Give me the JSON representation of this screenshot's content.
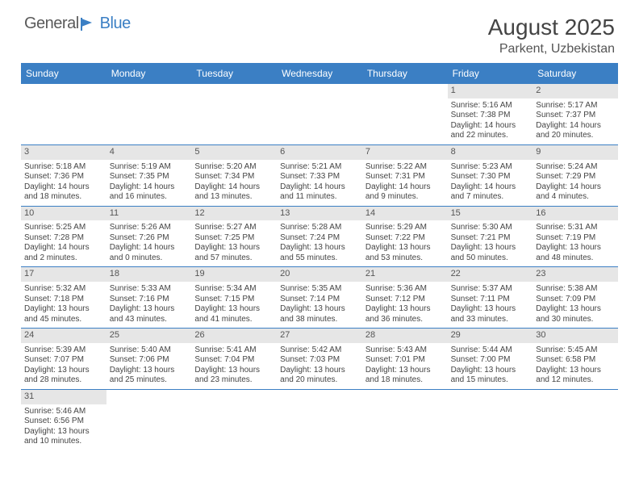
{
  "brand": {
    "text1": "General",
    "text2": "Blue"
  },
  "title": "August 2025",
  "location": "Parkent, Uzbekistan",
  "colors": {
    "header_bg": "#3b7fc4",
    "daynum_bg": "#e6e6e6",
    "text": "#444444"
  },
  "day_labels": [
    "Sunday",
    "Monday",
    "Tuesday",
    "Wednesday",
    "Thursday",
    "Friday",
    "Saturday"
  ],
  "weeks": [
    [
      null,
      null,
      null,
      null,
      null,
      {
        "n": "1",
        "sr": "Sunrise: 5:16 AM",
        "ss": "Sunset: 7:38 PM",
        "d1": "Daylight: 14 hours",
        "d2": "and 22 minutes."
      },
      {
        "n": "2",
        "sr": "Sunrise: 5:17 AM",
        "ss": "Sunset: 7:37 PM",
        "d1": "Daylight: 14 hours",
        "d2": "and 20 minutes."
      }
    ],
    [
      {
        "n": "3",
        "sr": "Sunrise: 5:18 AM",
        "ss": "Sunset: 7:36 PM",
        "d1": "Daylight: 14 hours",
        "d2": "and 18 minutes."
      },
      {
        "n": "4",
        "sr": "Sunrise: 5:19 AM",
        "ss": "Sunset: 7:35 PM",
        "d1": "Daylight: 14 hours",
        "d2": "and 16 minutes."
      },
      {
        "n": "5",
        "sr": "Sunrise: 5:20 AM",
        "ss": "Sunset: 7:34 PM",
        "d1": "Daylight: 14 hours",
        "d2": "and 13 minutes."
      },
      {
        "n": "6",
        "sr": "Sunrise: 5:21 AM",
        "ss": "Sunset: 7:33 PM",
        "d1": "Daylight: 14 hours",
        "d2": "and 11 minutes."
      },
      {
        "n": "7",
        "sr": "Sunrise: 5:22 AM",
        "ss": "Sunset: 7:31 PM",
        "d1": "Daylight: 14 hours",
        "d2": "and 9 minutes."
      },
      {
        "n": "8",
        "sr": "Sunrise: 5:23 AM",
        "ss": "Sunset: 7:30 PM",
        "d1": "Daylight: 14 hours",
        "d2": "and 7 minutes."
      },
      {
        "n": "9",
        "sr": "Sunrise: 5:24 AM",
        "ss": "Sunset: 7:29 PM",
        "d1": "Daylight: 14 hours",
        "d2": "and 4 minutes."
      }
    ],
    [
      {
        "n": "10",
        "sr": "Sunrise: 5:25 AM",
        "ss": "Sunset: 7:28 PM",
        "d1": "Daylight: 14 hours",
        "d2": "and 2 minutes."
      },
      {
        "n": "11",
        "sr": "Sunrise: 5:26 AM",
        "ss": "Sunset: 7:26 PM",
        "d1": "Daylight: 14 hours",
        "d2": "and 0 minutes."
      },
      {
        "n": "12",
        "sr": "Sunrise: 5:27 AM",
        "ss": "Sunset: 7:25 PM",
        "d1": "Daylight: 13 hours",
        "d2": "and 57 minutes."
      },
      {
        "n": "13",
        "sr": "Sunrise: 5:28 AM",
        "ss": "Sunset: 7:24 PM",
        "d1": "Daylight: 13 hours",
        "d2": "and 55 minutes."
      },
      {
        "n": "14",
        "sr": "Sunrise: 5:29 AM",
        "ss": "Sunset: 7:22 PM",
        "d1": "Daylight: 13 hours",
        "d2": "and 53 minutes."
      },
      {
        "n": "15",
        "sr": "Sunrise: 5:30 AM",
        "ss": "Sunset: 7:21 PM",
        "d1": "Daylight: 13 hours",
        "d2": "and 50 minutes."
      },
      {
        "n": "16",
        "sr": "Sunrise: 5:31 AM",
        "ss": "Sunset: 7:19 PM",
        "d1": "Daylight: 13 hours",
        "d2": "and 48 minutes."
      }
    ],
    [
      {
        "n": "17",
        "sr": "Sunrise: 5:32 AM",
        "ss": "Sunset: 7:18 PM",
        "d1": "Daylight: 13 hours",
        "d2": "and 45 minutes."
      },
      {
        "n": "18",
        "sr": "Sunrise: 5:33 AM",
        "ss": "Sunset: 7:16 PM",
        "d1": "Daylight: 13 hours",
        "d2": "and 43 minutes."
      },
      {
        "n": "19",
        "sr": "Sunrise: 5:34 AM",
        "ss": "Sunset: 7:15 PM",
        "d1": "Daylight: 13 hours",
        "d2": "and 41 minutes."
      },
      {
        "n": "20",
        "sr": "Sunrise: 5:35 AM",
        "ss": "Sunset: 7:14 PM",
        "d1": "Daylight: 13 hours",
        "d2": "and 38 minutes."
      },
      {
        "n": "21",
        "sr": "Sunrise: 5:36 AM",
        "ss": "Sunset: 7:12 PM",
        "d1": "Daylight: 13 hours",
        "d2": "and 36 minutes."
      },
      {
        "n": "22",
        "sr": "Sunrise: 5:37 AM",
        "ss": "Sunset: 7:11 PM",
        "d1": "Daylight: 13 hours",
        "d2": "and 33 minutes."
      },
      {
        "n": "23",
        "sr": "Sunrise: 5:38 AM",
        "ss": "Sunset: 7:09 PM",
        "d1": "Daylight: 13 hours",
        "d2": "and 30 minutes."
      }
    ],
    [
      {
        "n": "24",
        "sr": "Sunrise: 5:39 AM",
        "ss": "Sunset: 7:07 PM",
        "d1": "Daylight: 13 hours",
        "d2": "and 28 minutes."
      },
      {
        "n": "25",
        "sr": "Sunrise: 5:40 AM",
        "ss": "Sunset: 7:06 PM",
        "d1": "Daylight: 13 hours",
        "d2": "and 25 minutes."
      },
      {
        "n": "26",
        "sr": "Sunrise: 5:41 AM",
        "ss": "Sunset: 7:04 PM",
        "d1": "Daylight: 13 hours",
        "d2": "and 23 minutes."
      },
      {
        "n": "27",
        "sr": "Sunrise: 5:42 AM",
        "ss": "Sunset: 7:03 PM",
        "d1": "Daylight: 13 hours",
        "d2": "and 20 minutes."
      },
      {
        "n": "28",
        "sr": "Sunrise: 5:43 AM",
        "ss": "Sunset: 7:01 PM",
        "d1": "Daylight: 13 hours",
        "d2": "and 18 minutes."
      },
      {
        "n": "29",
        "sr": "Sunrise: 5:44 AM",
        "ss": "Sunset: 7:00 PM",
        "d1": "Daylight: 13 hours",
        "d2": "and 15 minutes."
      },
      {
        "n": "30",
        "sr": "Sunrise: 5:45 AM",
        "ss": "Sunset: 6:58 PM",
        "d1": "Daylight: 13 hours",
        "d2": "and 12 minutes."
      }
    ],
    [
      {
        "n": "31",
        "sr": "Sunrise: 5:46 AM",
        "ss": "Sunset: 6:56 PM",
        "d1": "Daylight: 13 hours",
        "d2": "and 10 minutes."
      },
      null,
      null,
      null,
      null,
      null,
      null
    ]
  ]
}
